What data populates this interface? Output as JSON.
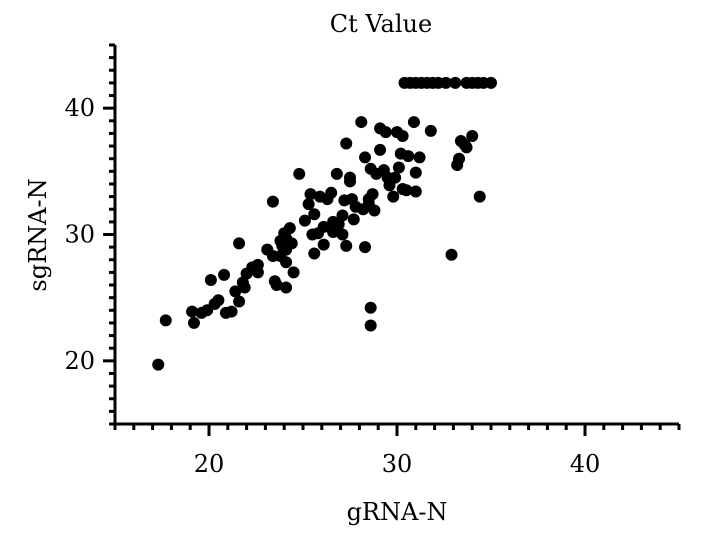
{
  "chart_data": {
    "type": "scatter",
    "title": "Ct Value",
    "xlabel": "gRNA-N",
    "ylabel": "sgRNA-N",
    "xlim": [
      15,
      45
    ],
    "ylim": [
      15,
      45
    ],
    "x_major_ticks": [
      20,
      30,
      40
    ],
    "y_major_ticks": [
      20,
      30,
      40
    ],
    "x_minor_step": 1,
    "y_minor_step": 1,
    "grid": false,
    "legend": "none",
    "marker_color": "#000000",
    "points": [
      [
        17.3,
        19.7
      ],
      [
        17.7,
        23.2
      ],
      [
        19.1,
        23.9
      ],
      [
        19.2,
        23.0
      ],
      [
        19.6,
        23.8
      ],
      [
        19.9,
        24.0
      ],
      [
        20.1,
        26.4
      ],
      [
        20.3,
        24.5
      ],
      [
        20.5,
        24.8
      ],
      [
        20.8,
        26.8
      ],
      [
        20.9,
        23.8
      ],
      [
        21.2,
        23.9
      ],
      [
        21.4,
        25.5
      ],
      [
        21.6,
        24.7
      ],
      [
        21.6,
        29.3
      ],
      [
        21.8,
        26.2
      ],
      [
        21.9,
        25.8
      ],
      [
        22.0,
        26.9
      ],
      [
        22.3,
        27.4
      ],
      [
        22.6,
        27.6
      ],
      [
        22.6,
        27.0
      ],
      [
        23.1,
        28.8
      ],
      [
        23.4,
        32.6
      ],
      [
        23.4,
        28.3
      ],
      [
        23.5,
        26.3
      ],
      [
        23.6,
        26.0
      ],
      [
        23.8,
        29.5
      ],
      [
        23.8,
        28.3
      ],
      [
        23.9,
        29.1
      ],
      [
        24.0,
        30.1
      ],
      [
        24.1,
        29.7
      ],
      [
        24.1,
        28.8
      ],
      [
        24.1,
        27.8
      ],
      [
        24.1,
        25.8
      ],
      [
        24.3,
        30.5
      ],
      [
        24.4,
        29.3
      ],
      [
        24.5,
        27.0
      ],
      [
        24.8,
        34.8
      ],
      [
        25.1,
        31.1
      ],
      [
        25.3,
        32.4
      ],
      [
        25.4,
        33.2
      ],
      [
        25.5,
        30.0
      ],
      [
        25.6,
        31.6
      ],
      [
        25.6,
        28.5
      ],
      [
        25.8,
        30.1
      ],
      [
        25.9,
        33.0
      ],
      [
        26.1,
        30.6
      ],
      [
        26.1,
        29.2
      ],
      [
        26.3,
        32.8
      ],
      [
        26.5,
        33.3
      ],
      [
        26.6,
        30.2
      ],
      [
        26.6,
        31.0
      ],
      [
        26.8,
        34.8
      ],
      [
        26.9,
        30.8
      ],
      [
        27.1,
        31.5
      ],
      [
        27.1,
        30.0
      ],
      [
        27.2,
        32.7
      ],
      [
        27.3,
        37.2
      ],
      [
        27.3,
        29.1
      ],
      [
        27.5,
        34.2
      ],
      [
        27.5,
        34.5
      ],
      [
        27.6,
        32.8
      ],
      [
        27.7,
        31.2
      ],
      [
        27.8,
        32.2
      ],
      [
        28.1,
        38.9
      ],
      [
        28.2,
        32.0
      ],
      [
        28.3,
        36.1
      ],
      [
        28.3,
        29.0
      ],
      [
        28.5,
        32.8
      ],
      [
        28.5,
        32.4
      ],
      [
        28.6,
        35.2
      ],
      [
        28.6,
        24.2
      ],
      [
        28.6,
        22.8
      ],
      [
        28.7,
        33.2
      ],
      [
        28.8,
        31.9
      ],
      [
        28.9,
        34.8
      ],
      [
        29.1,
        38.4
      ],
      [
        29.1,
        36.7
      ],
      [
        29.3,
        35.1
      ],
      [
        29.4,
        38.1
      ],
      [
        29.5,
        34.5
      ],
      [
        29.6,
        33.9
      ],
      [
        29.8,
        33.0
      ],
      [
        29.9,
        34.5
      ],
      [
        30.0,
        38.1
      ],
      [
        30.1,
        35.3
      ],
      [
        30.2,
        36.4
      ],
      [
        30.3,
        37.8
      ],
      [
        30.3,
        33.6
      ],
      [
        30.5,
        33.5
      ],
      [
        30.6,
        36.2
      ],
      [
        30.9,
        38.9
      ],
      [
        31.0,
        33.4
      ],
      [
        31.0,
        34.9
      ],
      [
        31.2,
        36.1
      ],
      [
        31.8,
        38.2
      ],
      [
        32.9,
        28.4
      ],
      [
        33.2,
        35.5
      ],
      [
        33.3,
        36.0
      ],
      [
        33.4,
        37.4
      ],
      [
        33.6,
        37.1
      ],
      [
        33.7,
        36.9
      ],
      [
        34.0,
        37.8
      ],
      [
        34.4,
        33.0
      ],
      [
        30.4,
        42.0
      ],
      [
        30.7,
        42.0
      ],
      [
        31.0,
        42.0
      ],
      [
        31.3,
        42.0
      ],
      [
        31.6,
        42.0
      ],
      [
        31.9,
        42.0
      ],
      [
        32.2,
        42.0
      ],
      [
        32.6,
        42.0
      ],
      [
        33.1,
        42.0
      ],
      [
        33.7,
        42.0
      ],
      [
        34.0,
        42.0
      ],
      [
        34.3,
        42.0
      ],
      [
        34.6,
        42.0
      ],
      [
        35.0,
        42.0
      ]
    ]
  }
}
